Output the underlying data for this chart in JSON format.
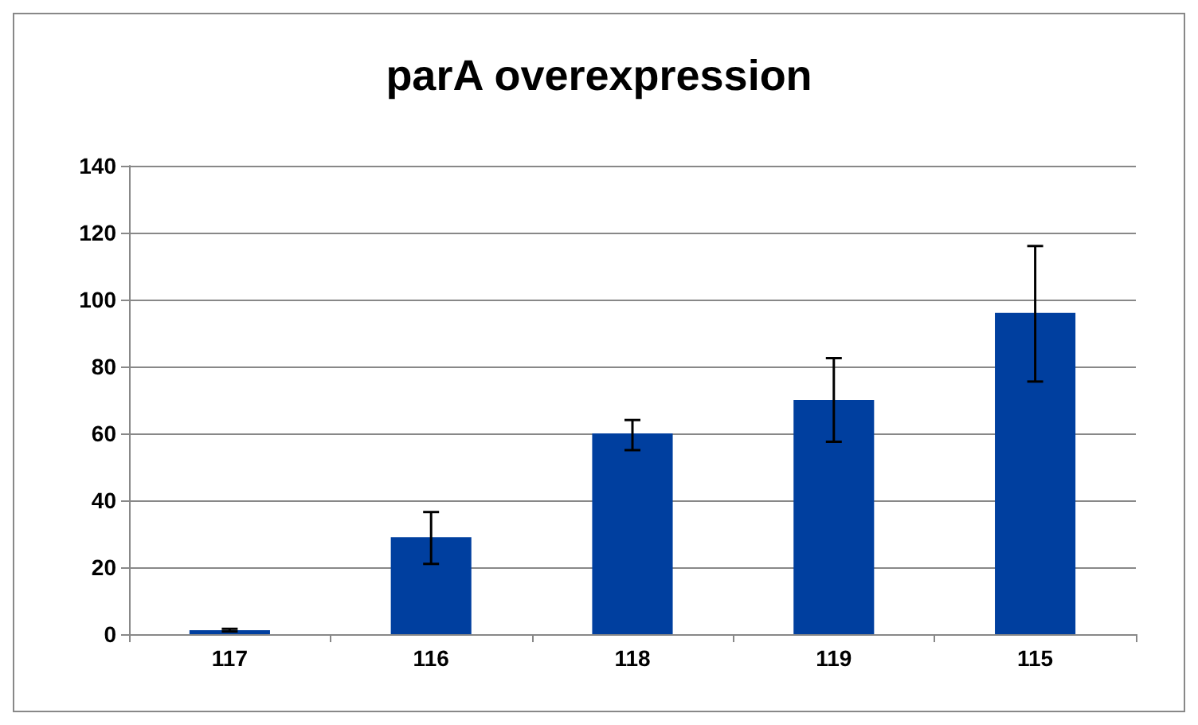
{
  "chart_data": {
    "type": "bar",
    "title": "parA overexpression",
    "categories": [
      "117",
      "116",
      "118",
      "119",
      "115"
    ],
    "series": [
      {
        "color": "#003f9f",
        "values": [
          1.2,
          29,
          60,
          70,
          96
        ],
        "errors": [
          [
            0.8,
            1.6
          ],
          [
            21,
            36.5
          ],
          [
            55,
            64
          ],
          [
            57.5,
            82.5
          ],
          [
            75.5,
            116
          ]
        ]
      }
    ],
    "ylim": [
      0,
      140
    ],
    "yticks": [
      0,
      20,
      40,
      60,
      80,
      100,
      120,
      140
    ],
    "grid": "y"
  }
}
